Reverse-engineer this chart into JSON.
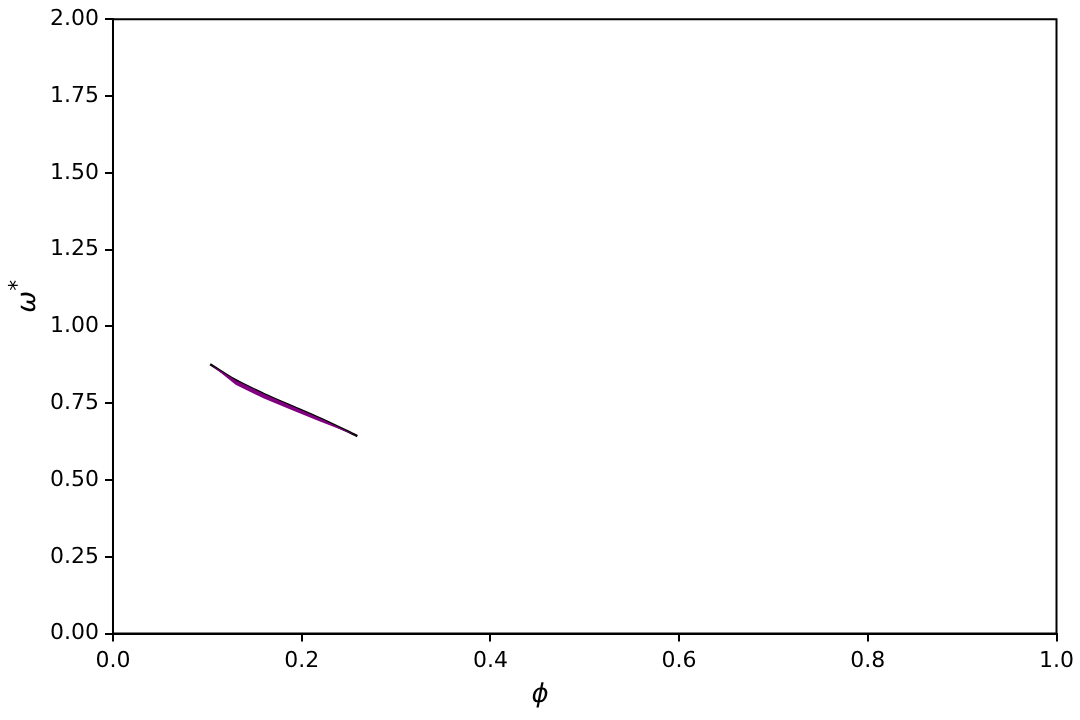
{
  "chart_data": {
    "type": "line",
    "xlabel": "ϕ",
    "ylabel": "ω$^{*}$",
    "xlim": [
      0,
      1
    ],
    "ylim": [
      0,
      2
    ],
    "xticks": [
      {
        "value": 0,
        "label": "0.0"
      },
      {
        "value": 0.2,
        "label": "0.2"
      },
      {
        "value": 0.4,
        "label": "0.4"
      },
      {
        "value": 0.6,
        "label": "0.6"
      },
      {
        "value": 0.8,
        "label": "0.8"
      },
      {
        "value": 1,
        "label": "1.0"
      }
    ],
    "yticks": [
      {
        "value": 0,
        "label": "0.00"
      },
      {
        "value": 0.25,
        "label": "0.25"
      },
      {
        "value": 0.5,
        "label": "0.50"
      },
      {
        "value": 0.75,
        "label": "0.75"
      },
      {
        "value": 1,
        "label": "1.00"
      },
      {
        "value": 1.25,
        "label": "1.25"
      },
      {
        "value": 1.5,
        "label": "1.50"
      },
      {
        "value": 1.75,
        "label": "1.75"
      },
      {
        "value": 2,
        "label": "2.00"
      }
    ],
    "grid": false,
    "legend": false,
    "marker": "none",
    "line_style": "solid",
    "series": [
      {
        "color": "#000000",
        "x": [
          0.103,
          0.13,
          0.16,
          0.19,
          0.22,
          0.259
        ],
        "values": [
          0.877,
          0.825,
          0.78,
          0.74,
          0.7,
          0.643
        ],
        "lower": [
          0.877,
          0.81,
          0.765,
          0.727,
          0.69,
          0.643
        ],
        "upper": [
          0.877,
          0.825,
          0.78,
          0.74,
          0.7,
          0.643
        ]
      }
    ]
  }
}
